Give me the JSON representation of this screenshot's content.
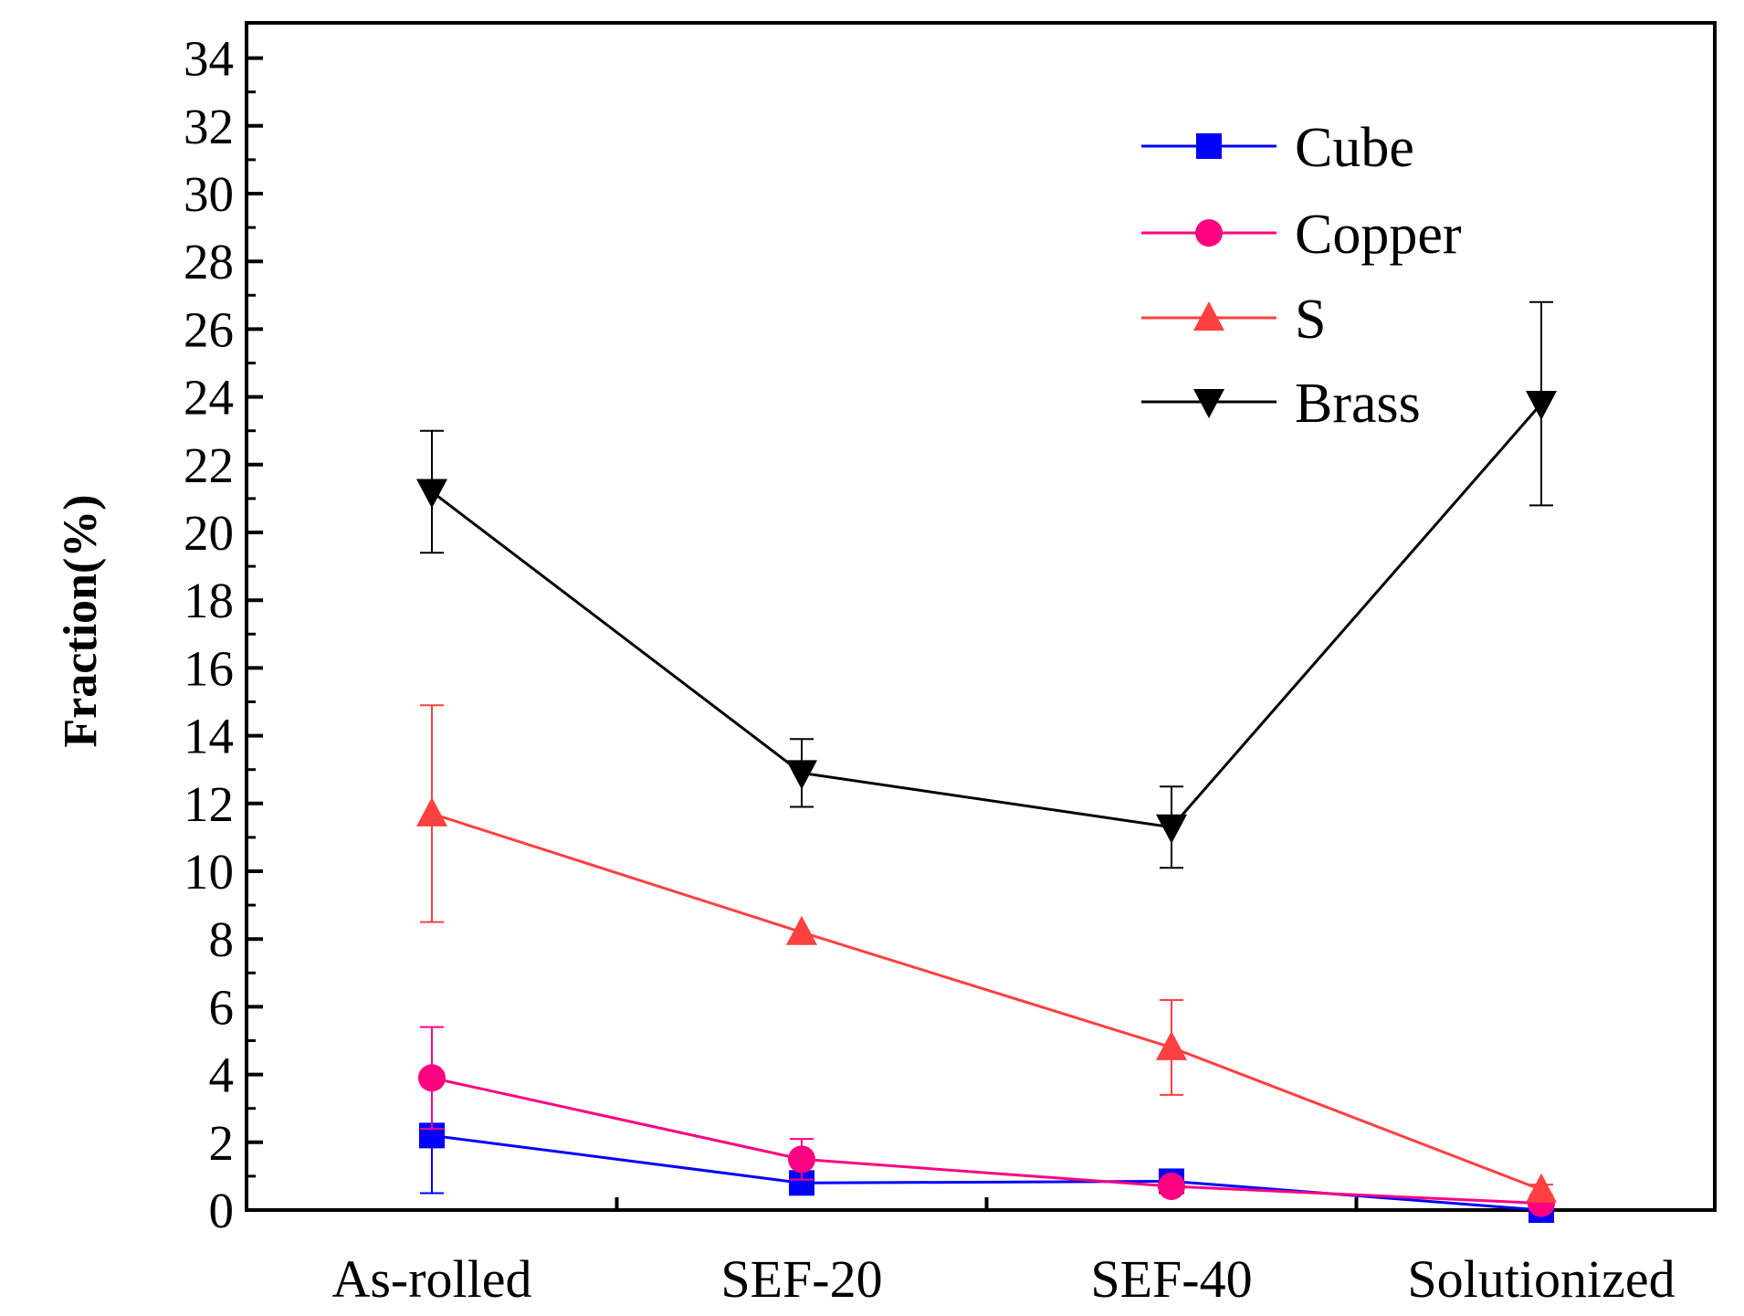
{
  "chart_data": {
    "type": "line",
    "title": "",
    "xlabel": "",
    "ylabel": "Fraction(%)",
    "categories": [
      "As-rolled",
      "SEF-20",
      "SEF-40",
      "Solutionized"
    ],
    "ylim": [
      0,
      35
    ],
    "yticks": [
      0,
      2,
      4,
      6,
      8,
      10,
      12,
      14,
      16,
      18,
      20,
      22,
      24,
      26,
      28,
      30,
      32,
      34
    ],
    "legend_position": "top-right",
    "grid": false,
    "series": [
      {
        "name": "Cube",
        "marker": "square",
        "color": "#0000ff",
        "values": [
          2.2,
          0.8,
          0.85,
          0.0
        ],
        "errors": [
          1.7,
          0.15,
          0.2,
          0.05
        ]
      },
      {
        "name": "Copper",
        "marker": "circle",
        "color": "#ff0080",
        "values": [
          3.9,
          1.5,
          0.7,
          0.2
        ],
        "errors": [
          1.5,
          0.6,
          0.2,
          0.1
        ]
      },
      {
        "name": "S",
        "marker": "triangle-up",
        "color": "#ff4040",
        "values": [
          11.7,
          8.2,
          4.8,
          0.6
        ],
        "errors": [
          3.2,
          0.0,
          1.4,
          0.15
        ]
      },
      {
        "name": "Brass",
        "marker": "triangle-down",
        "color": "#000000",
        "values": [
          21.2,
          12.9,
          11.3,
          23.8
        ],
        "errors": [
          1.8,
          1.0,
          1.2,
          3.0
        ]
      }
    ]
  }
}
